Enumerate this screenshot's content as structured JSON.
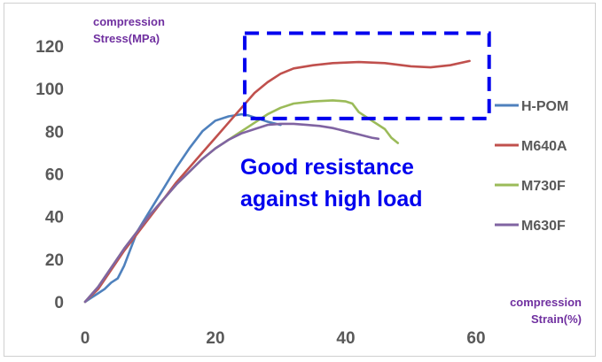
{
  "chart_data": {
    "type": "line",
    "title": "",
    "ylabel": [
      "compression",
      "Stress(MPa)"
    ],
    "xlabel": [
      "compression",
      "Strain(%)"
    ],
    "xlim": [
      0,
      60
    ],
    "ylim": [
      0,
      120
    ],
    "x_ticks": [
      "0",
      "20",
      "40",
      "60"
    ],
    "y_ticks": [
      "0",
      "20",
      "40",
      "60",
      "80",
      "100",
      "120"
    ],
    "grid": false,
    "legend_position": "right",
    "series": [
      {
        "name": "H-POM",
        "color": "#4f81bd",
        "points": [
          [
            0,
            0
          ],
          [
            1,
            2
          ],
          [
            2,
            4
          ],
          [
            3,
            6
          ],
          [
            4,
            9
          ],
          [
            5,
            11
          ],
          [
            6,
            17
          ],
          [
            7,
            25
          ],
          [
            8,
            33
          ],
          [
            10,
            43
          ],
          [
            12,
            53
          ],
          [
            14,
            63
          ],
          [
            16,
            72
          ],
          [
            18,
            80
          ],
          [
            20,
            85
          ],
          [
            22,
            87
          ],
          [
            24,
            88
          ],
          [
            25,
            87.5
          ],
          [
            26,
            86.5
          ],
          [
            28,
            84.5
          ],
          [
            30,
            83
          ]
        ]
      },
      {
        "name": "M640A",
        "color": "#c0504d",
        "points": [
          [
            0,
            0
          ],
          [
            2,
            6
          ],
          [
            4,
            15
          ],
          [
            6,
            24
          ],
          [
            8,
            32
          ],
          [
            10,
            40
          ],
          [
            12,
            48
          ],
          [
            14,
            56
          ],
          [
            16,
            63
          ],
          [
            18,
            70
          ],
          [
            20,
            77
          ],
          [
            22,
            84
          ],
          [
            24,
            91
          ],
          [
            26,
            98
          ],
          [
            28,
            103
          ],
          [
            30,
            107
          ],
          [
            32,
            109.5
          ],
          [
            35,
            111
          ],
          [
            38,
            112
          ],
          [
            42,
            112.5
          ],
          [
            46,
            112
          ],
          [
            50,
            110.5
          ],
          [
            53,
            110
          ],
          [
            56,
            111
          ],
          [
            59,
            113
          ]
        ]
      },
      {
        "name": "M730F",
        "color": "#9bbb59",
        "points": [
          [
            0,
            0
          ],
          [
            2,
            7
          ],
          [
            4,
            16
          ],
          [
            6,
            25
          ],
          [
            8,
            33
          ],
          [
            10,
            41
          ],
          [
            12,
            48
          ],
          [
            14,
            55
          ],
          [
            16,
            61
          ],
          [
            18,
            67
          ],
          [
            20,
            72
          ],
          [
            22,
            76
          ],
          [
            24,
            80
          ],
          [
            26,
            84
          ],
          [
            28,
            88
          ],
          [
            30,
            91
          ],
          [
            32,
            93
          ],
          [
            35,
            94
          ],
          [
            38,
            94.5
          ],
          [
            40,
            94
          ],
          [
            41,
            93
          ],
          [
            42,
            89
          ],
          [
            44,
            85
          ],
          [
            46,
            81
          ],
          [
            47,
            77
          ],
          [
            48,
            74.5
          ]
        ]
      },
      {
        "name": "M630F",
        "color": "#8064a2",
        "points": [
          [
            0,
            0
          ],
          [
            2,
            7
          ],
          [
            4,
            16
          ],
          [
            6,
            25
          ],
          [
            8,
            33
          ],
          [
            10,
            41
          ],
          [
            12,
            48
          ],
          [
            14,
            55
          ],
          [
            16,
            61
          ],
          [
            18,
            67
          ],
          [
            20,
            72
          ],
          [
            22,
            76
          ],
          [
            24,
            79
          ],
          [
            26,
            81
          ],
          [
            28,
            83
          ],
          [
            30,
            83.5
          ],
          [
            32,
            83.5
          ],
          [
            34,
            83
          ],
          [
            36,
            82.5
          ],
          [
            38,
            81.5
          ],
          [
            40,
            80
          ],
          [
            42,
            78.5
          ],
          [
            44,
            77
          ],
          [
            45,
            76.5
          ]
        ]
      }
    ],
    "annotation": {
      "lines": [
        "Good resistance",
        "against high load"
      ],
      "color": "#0000ee",
      "highlight_box": {
        "x_range": [
          24.5,
          62
        ],
        "y_range": [
          86,
          126
        ],
        "style": "dashed",
        "color": "#0000ee"
      }
    }
  }
}
